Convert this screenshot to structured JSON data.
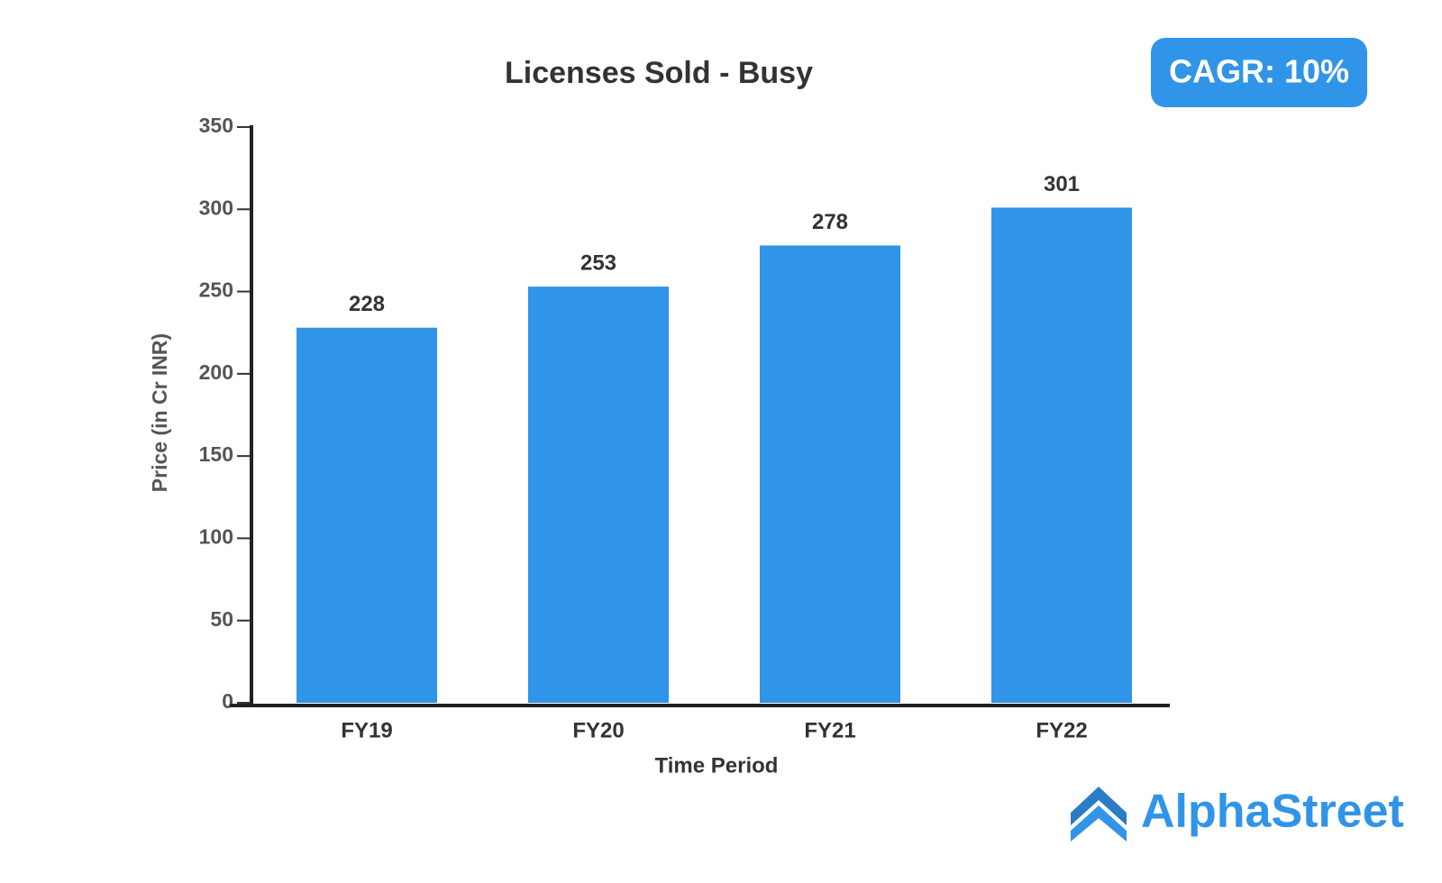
{
  "chart_data": {
    "type": "bar",
    "title": "Licenses Sold - Busy",
    "x_label": "Time Period",
    "y_label": "Price (in Cr INR)",
    "categories": [
      "FY19",
      "FY20",
      "FY21",
      "FY22"
    ],
    "values": [
      228,
      253,
      278,
      301
    ],
    "color": "#3094e8",
    "ylim": [
      0,
      350
    ],
    "yticks": [
      0,
      50,
      100,
      150,
      200,
      250,
      300,
      350
    ],
    "annotations": [
      "CAGR: 10%"
    ]
  },
  "logo": "AlphaStreet"
}
